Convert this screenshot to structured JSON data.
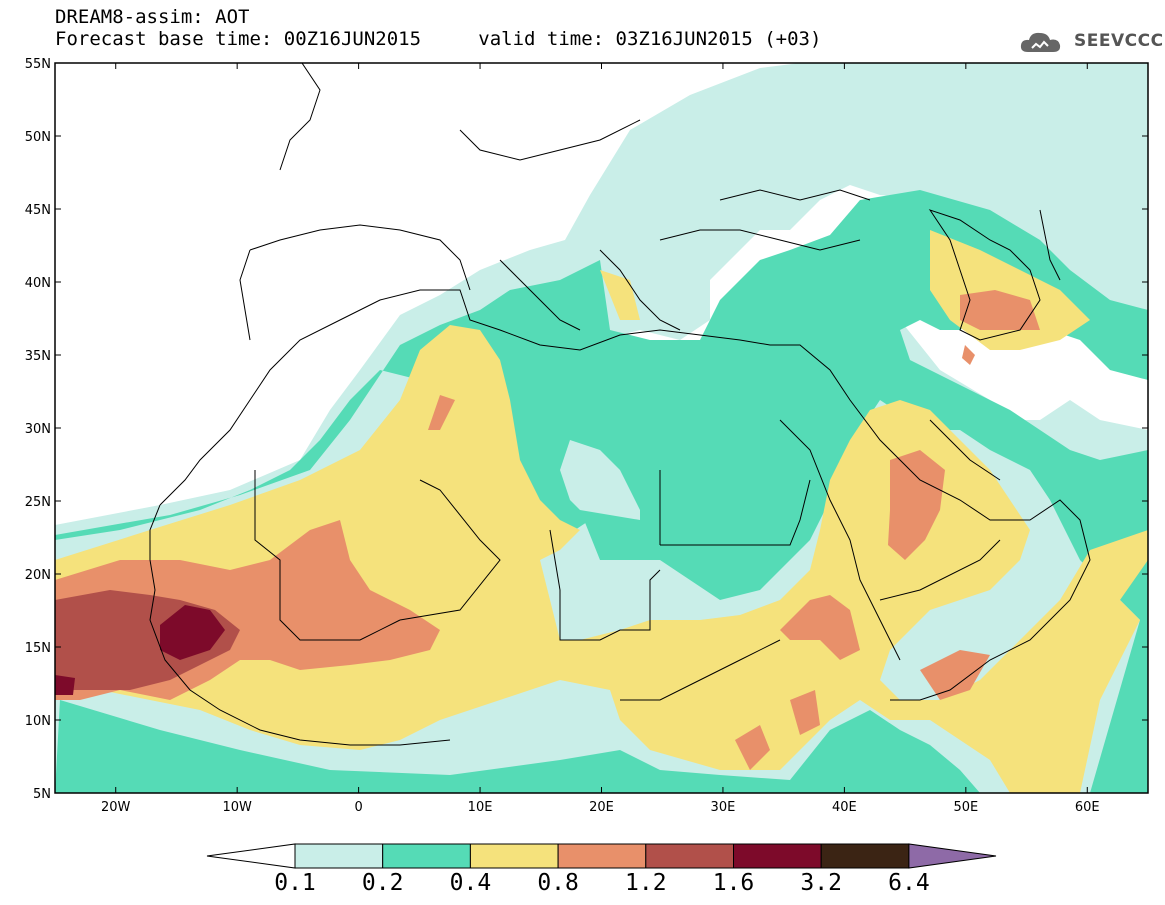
{
  "header": {
    "title": "DREAM8-assim: AOT",
    "base_label": "Forecast base time: 00Z16JUN2015",
    "valid_label": "valid time: 03Z16JUN2015 (+03)",
    "logo_text": "SEEVCCC"
  },
  "map": {
    "projection": "cylindrical",
    "lon_range": [
      -25,
      65
    ],
    "lat_range": [
      5,
      55
    ],
    "lat_ticks": [
      {
        "value": 55,
        "label": "55N"
      },
      {
        "value": 50,
        "label": "50N"
      },
      {
        "value": 45,
        "label": "45N"
      },
      {
        "value": 40,
        "label": "40N"
      },
      {
        "value": 35,
        "label": "35N"
      },
      {
        "value": 30,
        "label": "30N"
      },
      {
        "value": 25,
        "label": "25N"
      },
      {
        "value": 20,
        "label": "20N"
      },
      {
        "value": 15,
        "label": "15N"
      },
      {
        "value": 10,
        "label": "10N"
      },
      {
        "value": 5,
        "label": "5N"
      }
    ],
    "lon_ticks": [
      {
        "value": -20,
        "label": "20W"
      },
      {
        "value": -10,
        "label": "10W"
      },
      {
        "value": 0,
        "label": "0"
      },
      {
        "value": 10,
        "label": "10E"
      },
      {
        "value": 20,
        "label": "20E"
      },
      {
        "value": 30,
        "label": "30E"
      },
      {
        "value": 40,
        "label": "40E"
      },
      {
        "value": 50,
        "label": "50E"
      },
      {
        "value": 60,
        "label": "60E"
      }
    ]
  },
  "colorbar": {
    "colors": [
      "#ffffff",
      "#c9eee8",
      "#55dbb6",
      "#f5e27c",
      "#e8906a",
      "#b1504a",
      "#7d0a2a",
      "#3b2414",
      "#8e6aa7"
    ],
    "labels": [
      "0.1",
      "0.2",
      "0.4",
      "0.8",
      "1.2",
      "1.6",
      "3.2",
      "6.4"
    ]
  }
}
